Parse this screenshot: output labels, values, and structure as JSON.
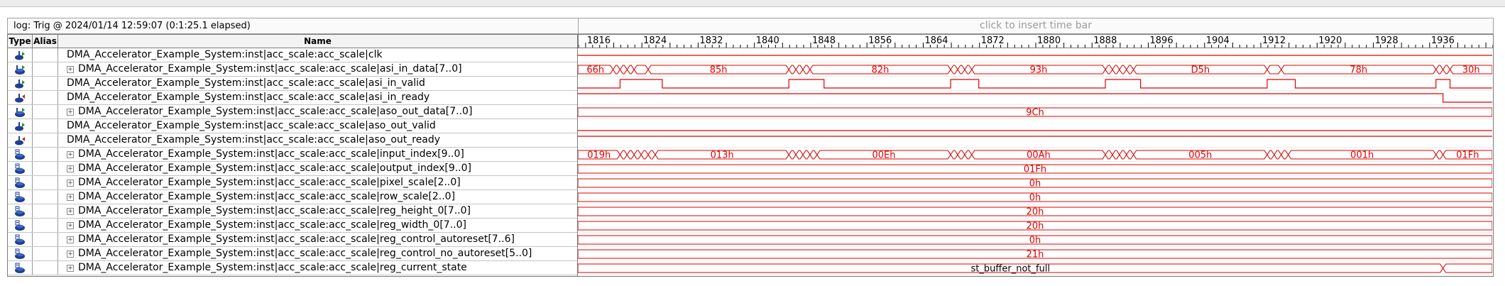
{
  "header": {
    "log_label": "log: Trig @ 2024/01/14 12:59:07 (0:1:25.1 elapsed)",
    "insert_time_bar": "click to insert time bar"
  },
  "columns": {
    "type": "Type",
    "alias": "Alias",
    "name": "Name"
  },
  "ruler": {
    "ticks": [
      1816,
      1824,
      1832,
      1840,
      1848,
      1856,
      1864,
      1872,
      1880,
      1888,
      1896,
      1904,
      1912,
      1920,
      1928,
      1936
    ],
    "range": [
      1815,
      1945
    ]
  },
  "colors": {
    "wave": "#e00000",
    "state_text": "#000000"
  },
  "signals": [
    {
      "name": "DMA_Accelerator_Example_System:inst|acc_scale:acc_scale|clk",
      "expandable": false,
      "icon": "input-pin-icon",
      "kind": "clk"
    },
    {
      "name": "DMA_Accelerator_Example_System:inst|acc_scale:acc_scale|asi_in_data[7..0]",
      "expandable": true,
      "icon": "input-bus-icon",
      "kind": "bus",
      "segments": [
        {
          "start": 1815,
          "end": 1820,
          "label": "66h"
        },
        {
          "start": 1820,
          "end": 1821,
          "label": ""
        },
        {
          "start": 1821,
          "end": 1822,
          "label": ""
        },
        {
          "start": 1822,
          "end": 1823,
          "label": ""
        },
        {
          "start": 1823,
          "end": 1825,
          "label": ""
        },
        {
          "start": 1825,
          "end": 1845,
          "label": "85h"
        },
        {
          "start": 1845,
          "end": 1846,
          "label": ""
        },
        {
          "start": 1846,
          "end": 1847,
          "label": ""
        },
        {
          "start": 1847,
          "end": 1848,
          "label": ""
        },
        {
          "start": 1848,
          "end": 1868,
          "label": "82h"
        },
        {
          "start": 1868,
          "end": 1869,
          "label": ""
        },
        {
          "start": 1869,
          "end": 1870,
          "label": ""
        },
        {
          "start": 1870,
          "end": 1871,
          "label": ""
        },
        {
          "start": 1871,
          "end": 1890,
          "label": "93h"
        },
        {
          "start": 1890,
          "end": 1891,
          "label": ""
        },
        {
          "start": 1891,
          "end": 1892,
          "label": ""
        },
        {
          "start": 1892,
          "end": 1893,
          "label": ""
        },
        {
          "start": 1893,
          "end": 1894,
          "label": ""
        },
        {
          "start": 1894,
          "end": 1913,
          "label": "D5h"
        },
        {
          "start": 1913,
          "end": 1915,
          "label": ""
        },
        {
          "start": 1915,
          "end": 1937,
          "label": "78h"
        },
        {
          "start": 1937,
          "end": 1938,
          "label": ""
        },
        {
          "start": 1938,
          "end": 1939,
          "label": ""
        },
        {
          "start": 1939,
          "end": 1945,
          "label": "30h"
        }
      ]
    },
    {
      "name": "DMA_Accelerator_Example_System:inst|acc_scale:acc_scale|asi_in_valid",
      "expandable": false,
      "icon": "input-pin-icon",
      "kind": "bit",
      "init": 0,
      "edges": [
        1821,
        1827,
        1845,
        1850,
        1868,
        1872,
        1890,
        1895,
        1913,
        1917,
        1937,
        1939
      ]
    },
    {
      "name": "DMA_Accelerator_Example_System:inst|acc_scale:acc_scale|asi_in_ready",
      "expandable": false,
      "icon": "output-pin-icon",
      "kind": "bit",
      "init": 1,
      "edges": [
        1938
      ]
    },
    {
      "name": "DMA_Accelerator_Example_System:inst|acc_scale:acc_scale|aso_out_data[7..0]",
      "expandable": true,
      "icon": "input-bus-icon",
      "kind": "bus",
      "segments": [
        {
          "start": 1815,
          "end": 1945,
          "label": "9Ch"
        }
      ]
    },
    {
      "name": "DMA_Accelerator_Example_System:inst|acc_scale:acc_scale|aso_out_valid",
      "expandable": false,
      "icon": "input-pin-icon",
      "kind": "bit",
      "init": 0,
      "edges": []
    },
    {
      "name": "DMA_Accelerator_Example_System:inst|acc_scale:acc_scale|aso_out_ready",
      "expandable": false,
      "icon": "output-pin-icon",
      "kind": "bit",
      "init": 1,
      "edges": []
    },
    {
      "name": "DMA_Accelerator_Example_System:inst|acc_scale:acc_scale|input_index[9..0]",
      "expandable": true,
      "icon": "register-bus-icon",
      "kind": "bus",
      "segments": [
        {
          "start": 1815,
          "end": 1821,
          "label": "019h"
        },
        {
          "start": 1821,
          "end": 1822,
          "label": ""
        },
        {
          "start": 1822,
          "end": 1823,
          "label": ""
        },
        {
          "start": 1823,
          "end": 1824,
          "label": ""
        },
        {
          "start": 1824,
          "end": 1825,
          "label": ""
        },
        {
          "start": 1825,
          "end": 1826,
          "label": ""
        },
        {
          "start": 1826,
          "end": 1845,
          "label": "013h"
        },
        {
          "start": 1845,
          "end": 1846,
          "label": ""
        },
        {
          "start": 1846,
          "end": 1847,
          "label": ""
        },
        {
          "start": 1847,
          "end": 1848,
          "label": ""
        },
        {
          "start": 1848,
          "end": 1849,
          "label": ""
        },
        {
          "start": 1849,
          "end": 1868,
          "label": "00Eh"
        },
        {
          "start": 1868,
          "end": 1869,
          "label": ""
        },
        {
          "start": 1869,
          "end": 1870,
          "label": ""
        },
        {
          "start": 1870,
          "end": 1871,
          "label": ""
        },
        {
          "start": 1871,
          "end": 1890,
          "label": "00Ah"
        },
        {
          "start": 1890,
          "end": 1891,
          "label": ""
        },
        {
          "start": 1891,
          "end": 1892,
          "label": ""
        },
        {
          "start": 1892,
          "end": 1893,
          "label": ""
        },
        {
          "start": 1893,
          "end": 1894,
          "label": ""
        },
        {
          "start": 1894,
          "end": 1913,
          "label": "005h"
        },
        {
          "start": 1913,
          "end": 1914,
          "label": ""
        },
        {
          "start": 1914,
          "end": 1915,
          "label": ""
        },
        {
          "start": 1915,
          "end": 1916,
          "label": ""
        },
        {
          "start": 1916,
          "end": 1937,
          "label": "001h"
        },
        {
          "start": 1937,
          "end": 1938,
          "label": ""
        },
        {
          "start": 1938,
          "end": 1945,
          "label": "01Fh"
        }
      ]
    },
    {
      "name": "DMA_Accelerator_Example_System:inst|acc_scale:acc_scale|output_index[9..0]",
      "expandable": true,
      "icon": "register-bus-icon",
      "kind": "bus",
      "segments": [
        {
          "start": 1815,
          "end": 1945,
          "label": "01Fh"
        }
      ]
    },
    {
      "name": "DMA_Accelerator_Example_System:inst|acc_scale:acc_scale|pixel_scale[2..0]",
      "expandable": true,
      "icon": "register-bus-icon",
      "kind": "bus",
      "segments": [
        {
          "start": 1815,
          "end": 1945,
          "label": "0h"
        }
      ]
    },
    {
      "name": "DMA_Accelerator_Example_System:inst|acc_scale:acc_scale|row_scale[2..0]",
      "expandable": true,
      "icon": "register-bus-icon",
      "kind": "bus",
      "segments": [
        {
          "start": 1815,
          "end": 1945,
          "label": "0h"
        }
      ]
    },
    {
      "name": "DMA_Accelerator_Example_System:inst|acc_scale:acc_scale|reg_height_0[7..0]",
      "expandable": true,
      "icon": "register-bus-icon",
      "kind": "bus",
      "segments": [
        {
          "start": 1815,
          "end": 1945,
          "label": "20h"
        }
      ]
    },
    {
      "name": "DMA_Accelerator_Example_System:inst|acc_scale:acc_scale|reg_width_0[7..0]",
      "expandable": true,
      "icon": "register-bus-icon",
      "kind": "bus",
      "segments": [
        {
          "start": 1815,
          "end": 1945,
          "label": "20h"
        }
      ]
    },
    {
      "name": "DMA_Accelerator_Example_System:inst|acc_scale:acc_scale|reg_control_autoreset[7..6]",
      "expandable": true,
      "icon": "register-bus-icon",
      "kind": "bus",
      "segments": [
        {
          "start": 1815,
          "end": 1945,
          "label": "0h"
        }
      ]
    },
    {
      "name": "DMA_Accelerator_Example_System:inst|acc_scale:acc_scale|reg_control_no_autoreset[5..0]",
      "expandable": true,
      "icon": "register-bus-icon",
      "kind": "bus",
      "segments": [
        {
          "start": 1815,
          "end": 1945,
          "label": "21h"
        }
      ]
    },
    {
      "name": "DMA_Accelerator_Example_System:inst|acc_scale:acc_scale|reg_current_state",
      "expandable": true,
      "icon": "register-bus-icon",
      "kind": "state",
      "segments": [
        {
          "start": 1815,
          "end": 1938,
          "label": "st_buffer_not_full"
        },
        {
          "start": 1938,
          "end": 1945,
          "label": ""
        }
      ]
    }
  ]
}
